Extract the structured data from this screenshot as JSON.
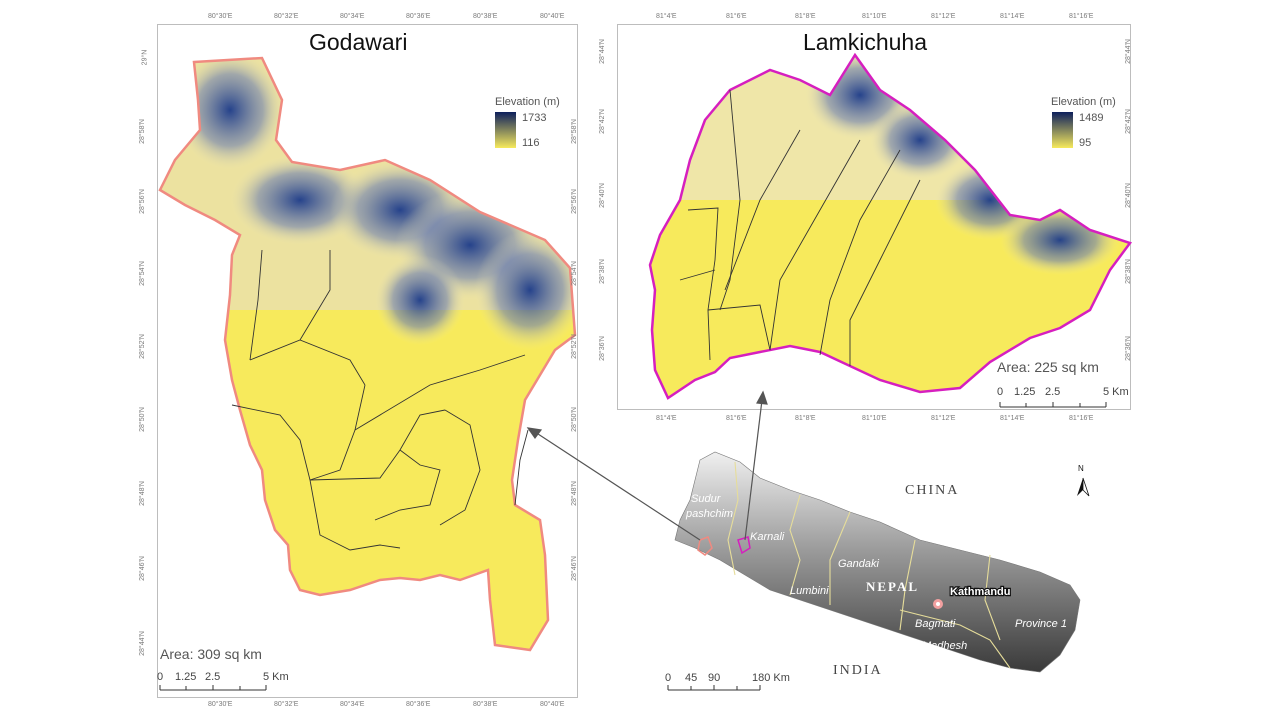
{
  "godawari": {
    "title": "Godawari",
    "legend_title": "Elevation (m)",
    "legend_max": "1733",
    "legend_min": "116",
    "area": "Area: 309 sq km",
    "scale_ticks": [
      "0",
      "1.25",
      "2.5",
      "5 Km"
    ],
    "lon_labels": [
      "80°30'E",
      "80°32'E",
      "80°34'E",
      "80°36'E",
      "80°38'E",
      "80°40'E"
    ],
    "lat_labels": [
      "29°N",
      "28°58'N",
      "28°56'N",
      "28°54'N",
      "28°52'N",
      "28°50'N",
      "28°48'N",
      "28°46'N",
      "28°44'N"
    ]
  },
  "lamkichuha": {
    "title": "Lamkichuha",
    "legend_title": "Elevation (m)",
    "legend_max": "1489",
    "legend_min": "95",
    "area": "Area: 225 sq km",
    "scale_ticks": [
      "0",
      "1.25",
      "2.5",
      "5 Km"
    ],
    "lon_labels": [
      "81°4'E",
      "81°6'E",
      "81°8'E",
      "81°10'E",
      "81°12'E",
      "81°14'E",
      "81°16'E"
    ],
    "lat_labels": [
      "28°44'N",
      "28°42'N",
      "28°40'N",
      "28°38'N",
      "28°36'N"
    ]
  },
  "nepal": {
    "china": "CHINA",
    "india": "INDIA",
    "nepal": "NEPAL",
    "capital": "Kathmandu",
    "north": "N",
    "provinces": [
      "Sudur",
      "pashchim",
      "Karnali",
      "Gandaki",
      "Lumbini",
      "Bagmati",
      "Madhesh",
      "Province 1"
    ],
    "scale_ticks": [
      "0",
      "45",
      "90",
      "180 Km"
    ]
  },
  "colors": {
    "low": "#f7ea5c",
    "high": "#0d1f5c",
    "godawari_boundary": "#f08a80",
    "lamki_boundary": "#d61fbf"
  }
}
